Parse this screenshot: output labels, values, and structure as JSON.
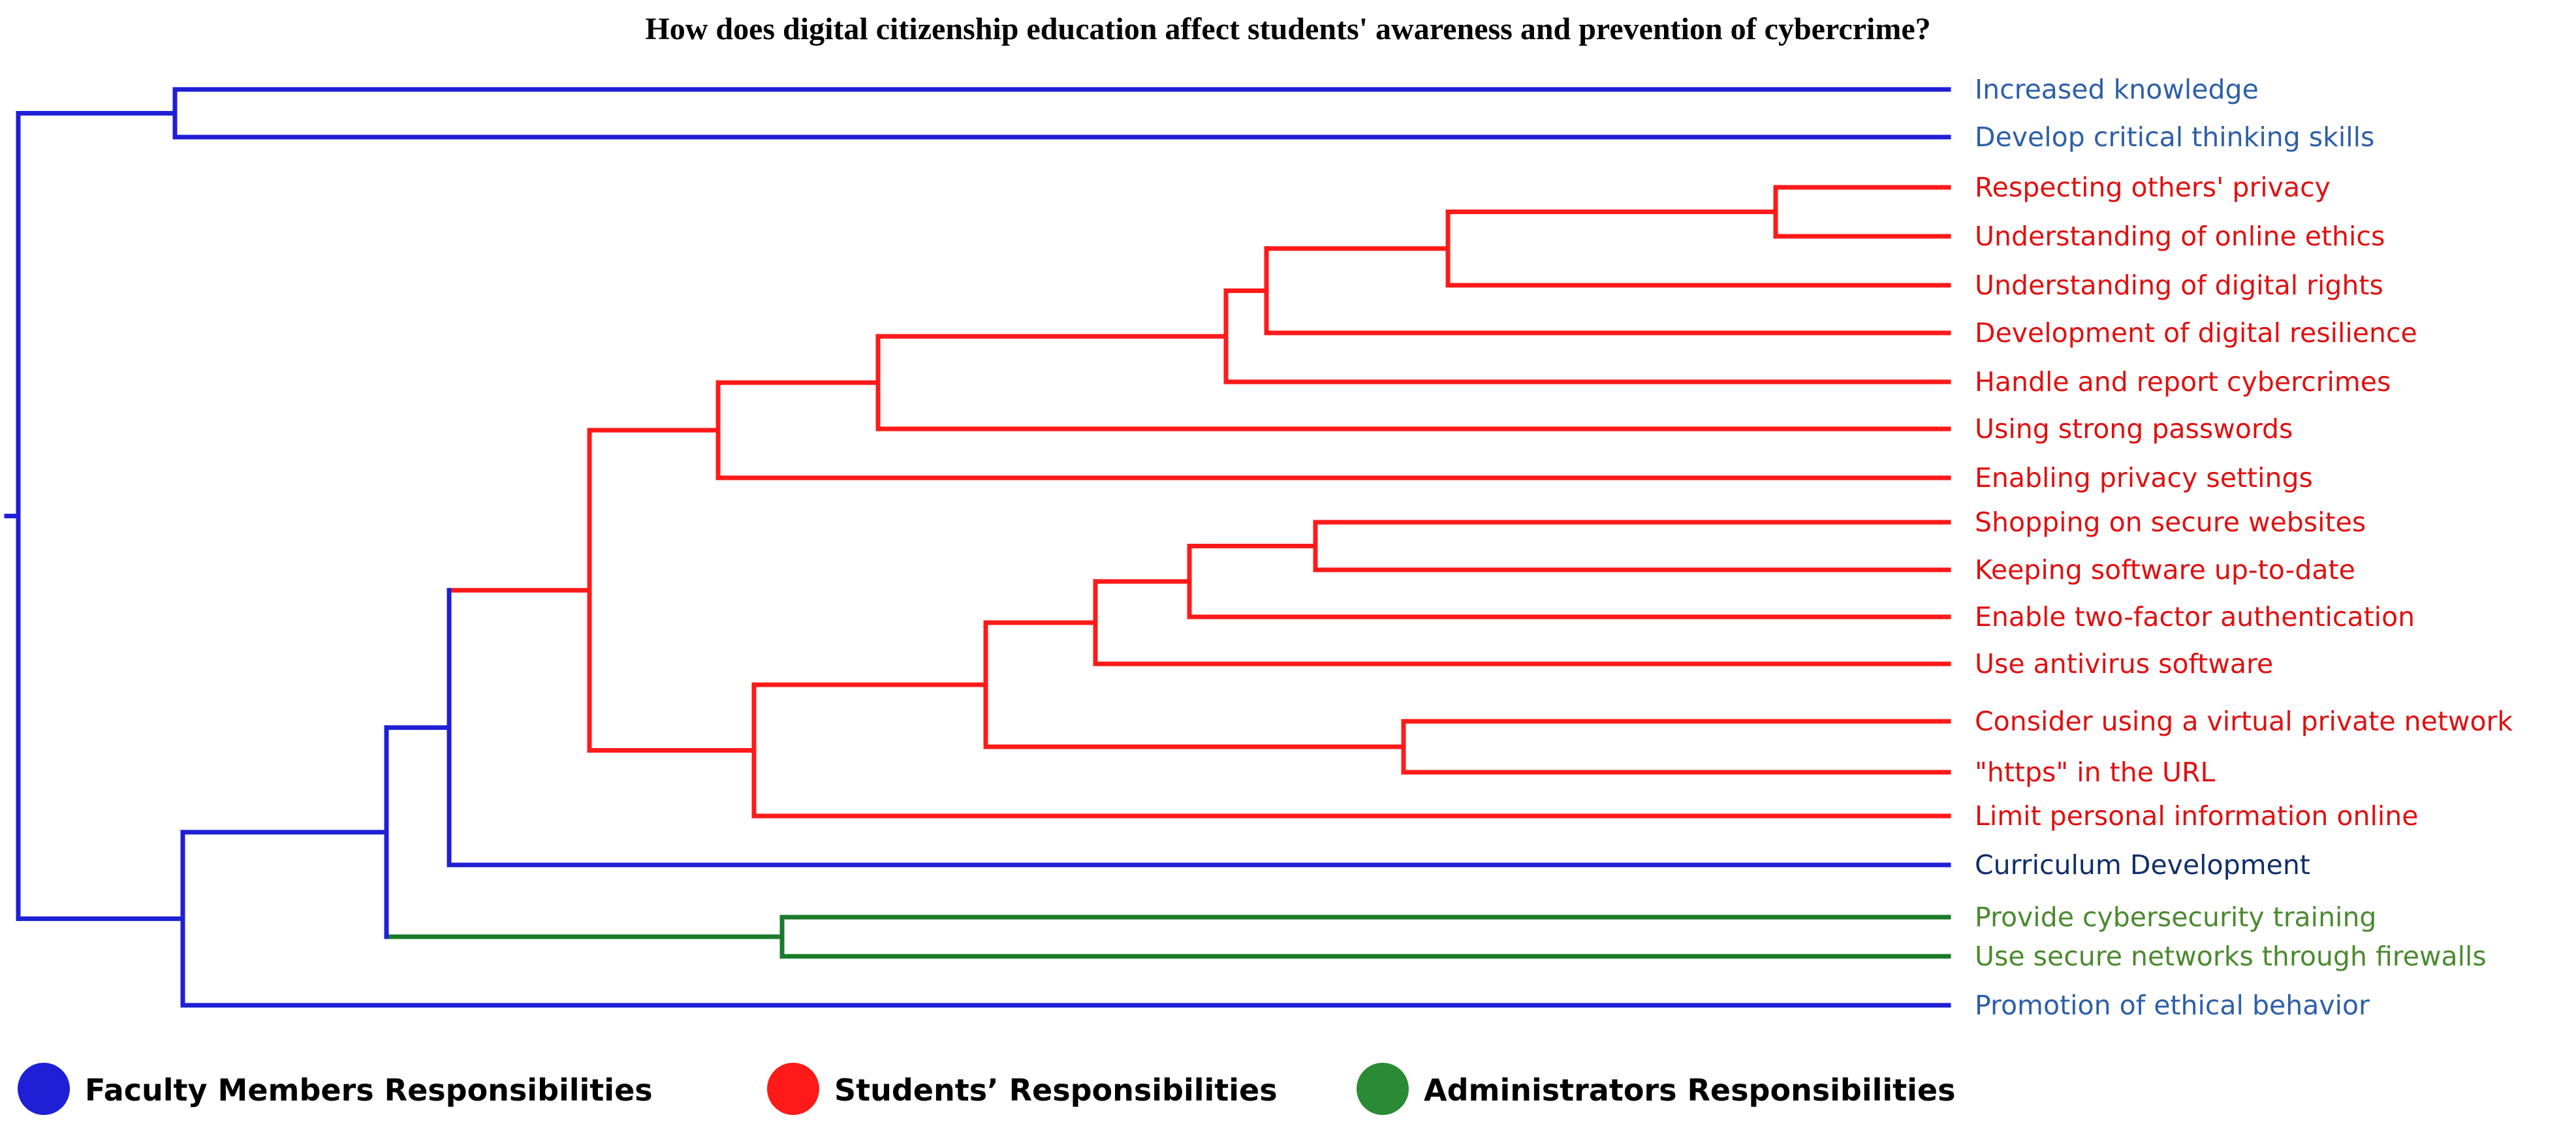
{
  "title": "How does digital citizenship education affect students' awareness and prevention of cybercrime?",
  "colors": {
    "faculty": "#1f1fd6",
    "students": "#ff1a1a",
    "administrators": "#1a7a2a",
    "faculty_label": "#2d5fa8",
    "curriculum_label": "#0f2f6a",
    "students_label": "#e01010",
    "administrators_label": "#4a8a2e"
  },
  "legend": [
    {
      "label": "Faculty Members Responsibilities",
      "color": "#1f1fd6"
    },
    {
      "label": "Students’ Responsibilities",
      "color": "#ff1a1a"
    },
    {
      "label": "Administrators Responsibilities",
      "color": "#2a8a36"
    }
  ],
  "leaves": [
    {
      "id": "L1",
      "label": "Increased knowledge",
      "group": "faculty"
    },
    {
      "id": "L2",
      "label": "Develop critical thinking skills",
      "group": "faculty"
    },
    {
      "id": "L3",
      "label": "Respecting others' privacy",
      "group": "students"
    },
    {
      "id": "L4",
      "label": "Understanding of online ethics",
      "group": "students"
    },
    {
      "id": "L5",
      "label": "Understanding of digital rights",
      "group": "students"
    },
    {
      "id": "L6",
      "label": "Development of digital resilience",
      "group": "students"
    },
    {
      "id": "L7",
      "label": "Handle and report cybercrimes",
      "group": "students"
    },
    {
      "id": "L8",
      "label": "Using strong passwords",
      "group": "students"
    },
    {
      "id": "L9",
      "label": "Enabling privacy settings",
      "group": "students"
    },
    {
      "id": "L10",
      "label": "Shopping on secure websites",
      "group": "students"
    },
    {
      "id": "L11",
      "label": "Keeping software up-to-date",
      "group": "students"
    },
    {
      "id": "L12",
      "label": "Enable two-factor authentication",
      "group": "students"
    },
    {
      "id": "L13",
      "label": "Use antivirus software",
      "group": "students"
    },
    {
      "id": "L14",
      "label": "Consider using a virtual private network",
      "group": "students"
    },
    {
      "id": "L15",
      "label": "\"https\" in the URL",
      "group": "students"
    },
    {
      "id": "L16",
      "label": "Limit personal information online",
      "group": "students"
    },
    {
      "id": "L17",
      "label": "Curriculum Development",
      "group": "curriculum"
    },
    {
      "id": "L18",
      "label": "Provide cybersecurity training",
      "group": "administrators"
    },
    {
      "id": "L19",
      "label": "Use secure networks through firewalls",
      "group": "administrators"
    },
    {
      "id": "L20",
      "label": "Promotion of ethical behavior",
      "group": "faculty"
    }
  ]
}
